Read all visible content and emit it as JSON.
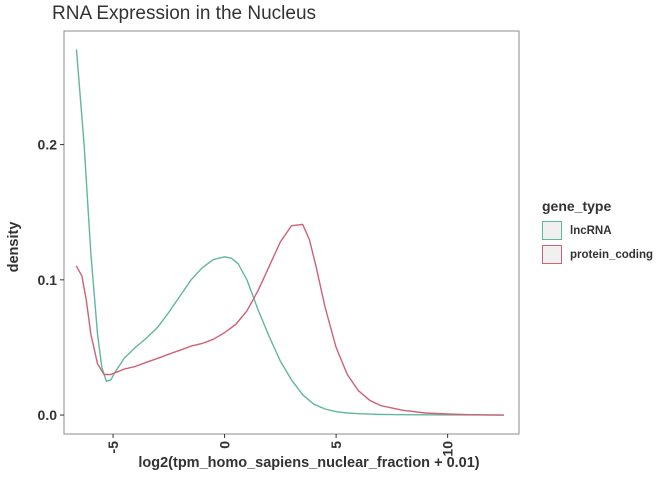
{
  "chart_data": {
    "type": "line",
    "title": "RNA Expression in the Nucleus",
    "xlabel": "log2(tpm_homo_sapiens_nuclear_fraction + 0.01)",
    "ylabel": "density",
    "xlim": [
      -7.2,
      13.2
    ],
    "ylim": [
      -0.014,
      0.284
    ],
    "x_ticks": [
      -5,
      0,
      5,
      10
    ],
    "x_tick_labels": [
      "-5",
      "0",
      "5",
      "10"
    ],
    "y_ticks": [
      0.0,
      0.1,
      0.2
    ],
    "y_tick_labels": [
      "0.0",
      "0.1",
      "0.2"
    ],
    "grid": false,
    "legend": {
      "title": "gene_type",
      "position": "right"
    },
    "series": [
      {
        "name": "lncRNA",
        "color": "#61b79d",
        "x": [
          -6.64,
          -6.3,
          -6.0,
          -5.7,
          -5.5,
          -5.3,
          -5.1,
          -4.9,
          -4.5,
          -4.0,
          -3.5,
          -3.0,
          -2.5,
          -2.0,
          -1.5,
          -1.0,
          -0.5,
          0.0,
          0.3,
          0.6,
          1.0,
          1.5,
          2.0,
          2.5,
          3.0,
          3.5,
          4.0,
          4.5,
          5.0,
          5.5,
          6.0,
          7.0,
          8.0,
          9.0,
          10.0,
          11.0,
          12.5
        ],
        "values": [
          0.27,
          0.2,
          0.12,
          0.06,
          0.035,
          0.025,
          0.026,
          0.032,
          0.042,
          0.05,
          0.057,
          0.065,
          0.076,
          0.088,
          0.1,
          0.109,
          0.115,
          0.117,
          0.116,
          0.112,
          0.1,
          0.078,
          0.058,
          0.04,
          0.026,
          0.015,
          0.008,
          0.0045,
          0.0025,
          0.0015,
          0.001,
          0.0005,
          0.0003,
          0.0002,
          0.0001,
          0.0001,
          0.0
        ]
      },
      {
        "name": "protein_coding",
        "color": "#cf6176",
        "x": [
          -6.64,
          -6.4,
          -6.2,
          -6.0,
          -5.7,
          -5.4,
          -5.1,
          -4.8,
          -4.5,
          -4.0,
          -3.5,
          -3.0,
          -2.5,
          -2.0,
          -1.5,
          -1.0,
          -0.5,
          0.0,
          0.5,
          1.0,
          1.5,
          2.0,
          2.5,
          3.0,
          3.5,
          3.8,
          4.1,
          4.5,
          5.0,
          5.5,
          6.0,
          6.5,
          7.0,
          8.0,
          9.0,
          10.0,
          11.0,
          12.5
        ],
        "values": [
          0.11,
          0.103,
          0.085,
          0.06,
          0.038,
          0.03,
          0.03,
          0.032,
          0.034,
          0.036,
          0.039,
          0.042,
          0.045,
          0.048,
          0.051,
          0.053,
          0.056,
          0.061,
          0.067,
          0.077,
          0.092,
          0.11,
          0.128,
          0.14,
          0.141,
          0.13,
          0.11,
          0.08,
          0.05,
          0.03,
          0.018,
          0.011,
          0.007,
          0.0035,
          0.0015,
          0.0008,
          0.0003,
          0.0
        ]
      }
    ]
  }
}
